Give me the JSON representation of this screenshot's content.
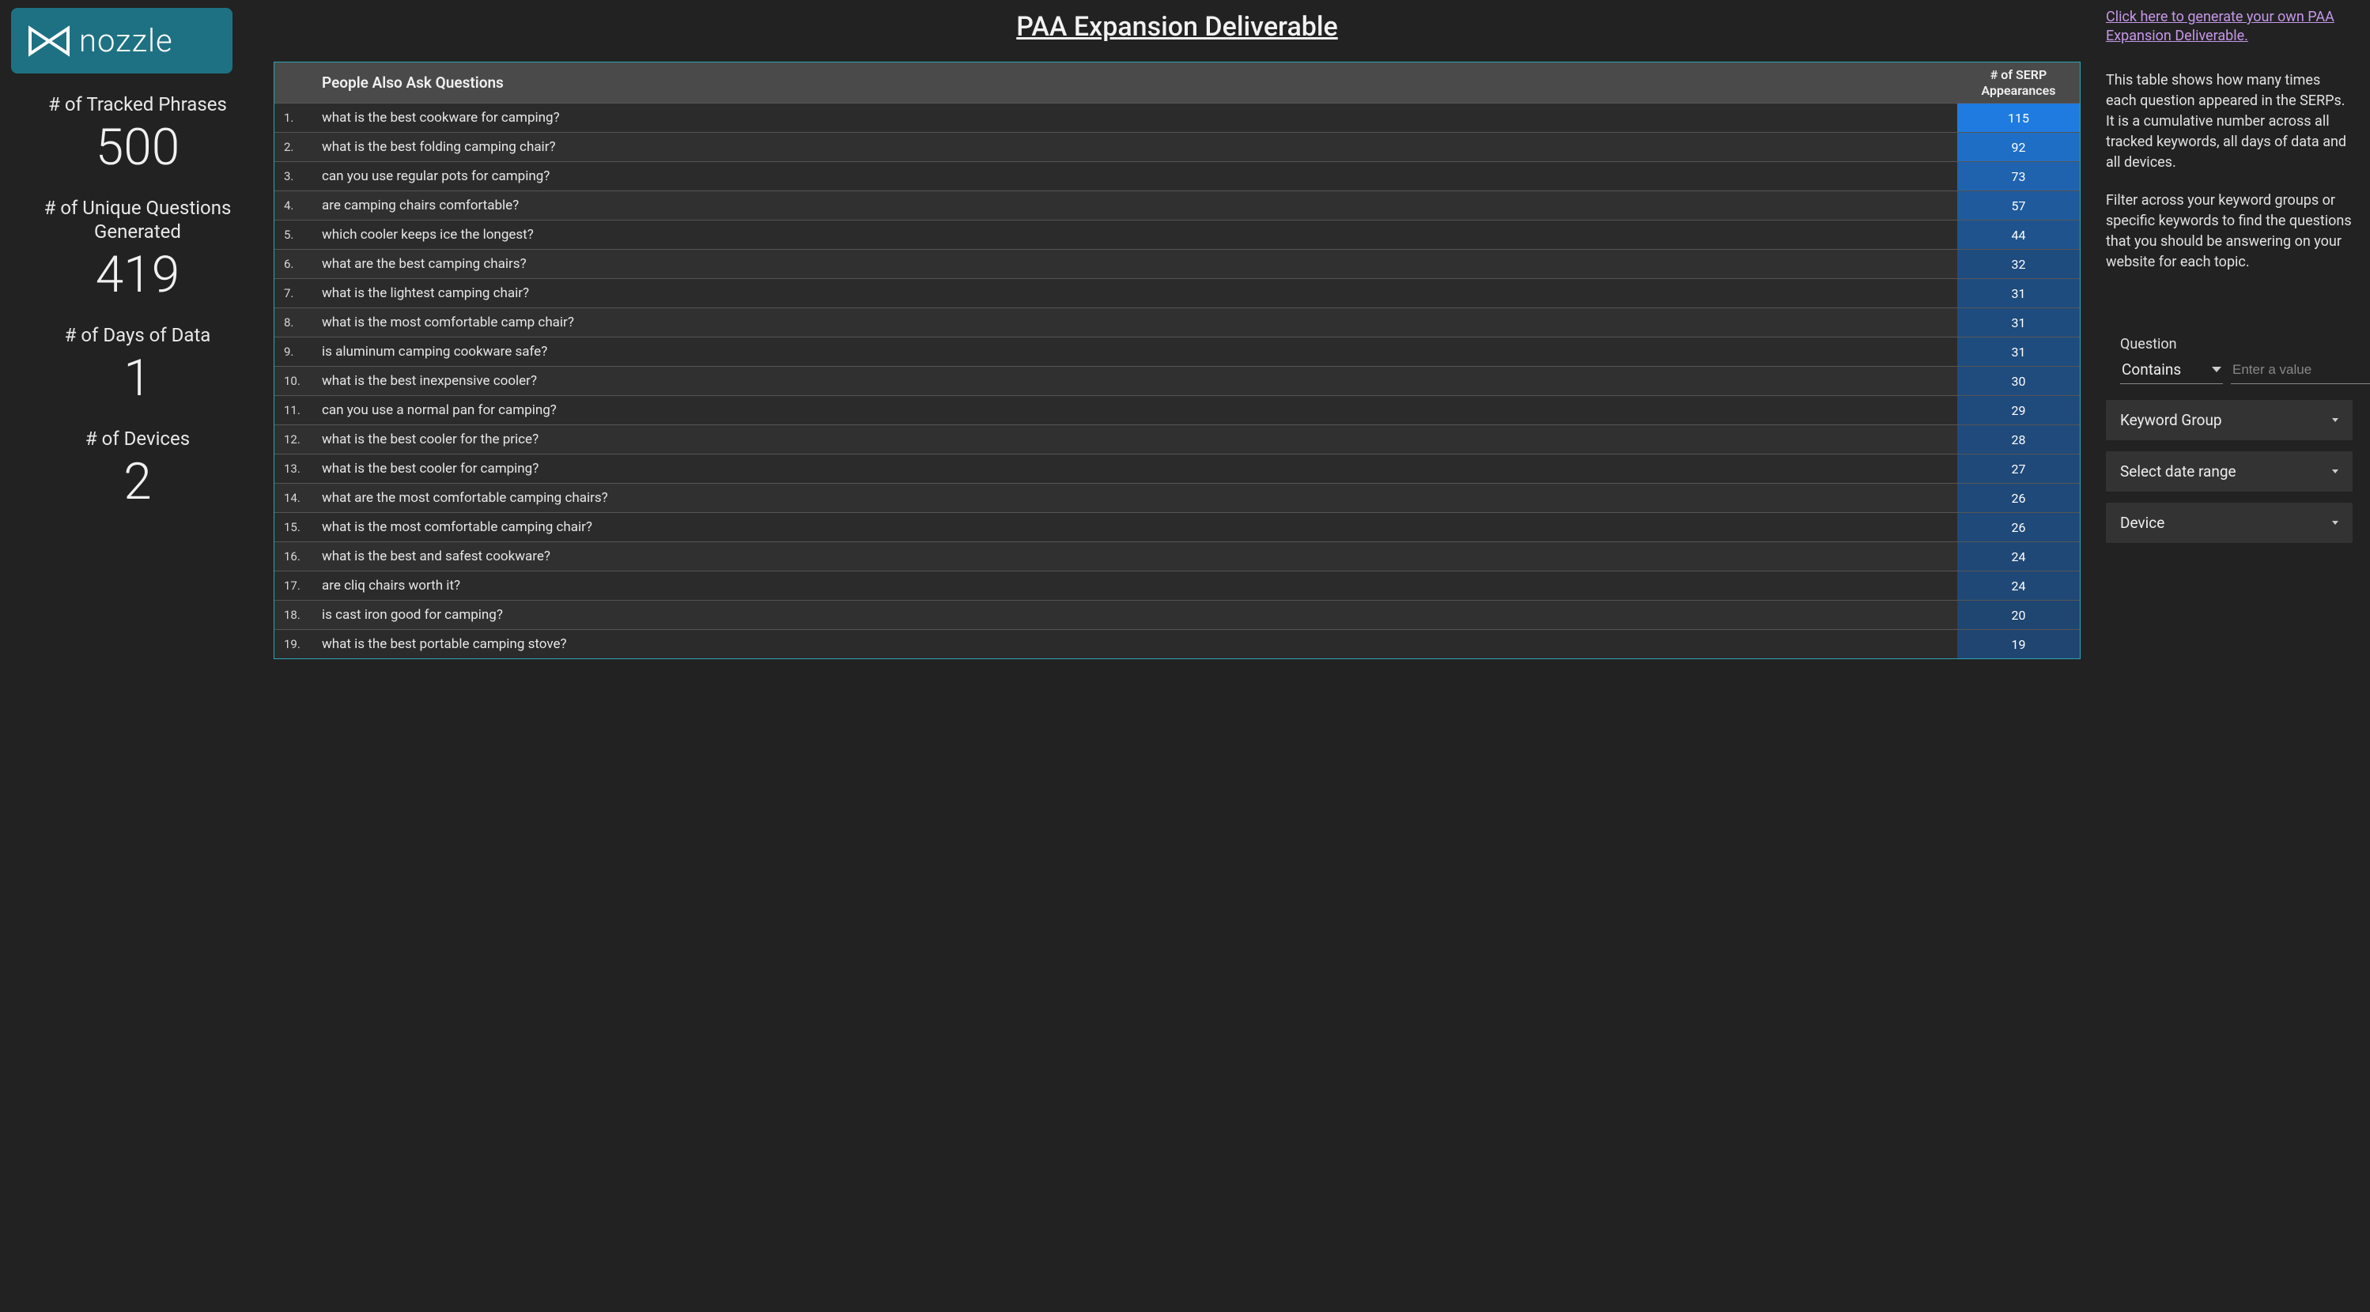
{
  "brand": {
    "name": "nozzle"
  },
  "page_title": "PAA Expansion Deliverable",
  "stats": [
    {
      "label": "# of Tracked Phrases",
      "value": "500"
    },
    {
      "label": "# of Unique Questions Generated",
      "value": "419"
    },
    {
      "label": "# of Days of Data",
      "value": "1"
    },
    {
      "label": "# of Devices",
      "value": "2"
    }
  ],
  "table": {
    "header_question": "People Also Ask Questions",
    "header_count": "# of SERP Appearances",
    "max_value": 115,
    "color_scale": {
      "min_color": "#1f3a5a",
      "max_color": "#1f7be0"
    },
    "rows": [
      {
        "idx": "1.",
        "q": "what is the best cookware for camping?",
        "n": 115
      },
      {
        "idx": "2.",
        "q": "what is the best folding camping chair?",
        "n": 92
      },
      {
        "idx": "3.",
        "q": "can you use regular pots for camping?",
        "n": 73
      },
      {
        "idx": "4.",
        "q": "are camping chairs comfortable?",
        "n": 57
      },
      {
        "idx": "5.",
        "q": "which cooler keeps ice the longest?",
        "n": 44
      },
      {
        "idx": "6.",
        "q": "what are the best camping chairs?",
        "n": 32
      },
      {
        "idx": "7.",
        "q": "what is the lightest camping chair?",
        "n": 31
      },
      {
        "idx": "8.",
        "q": "what is the most comfortable camp chair?",
        "n": 31
      },
      {
        "idx": "9.",
        "q": "is aluminum camping cookware safe?",
        "n": 31
      },
      {
        "idx": "10.",
        "q": "what is the best inexpensive cooler?",
        "n": 30
      },
      {
        "idx": "11.",
        "q": "can you use a normal pan for camping?",
        "n": 29
      },
      {
        "idx": "12.",
        "q": "what is the best cooler for the price?",
        "n": 28
      },
      {
        "idx": "13.",
        "q": "what is the best cooler for camping?",
        "n": 27
      },
      {
        "idx": "14.",
        "q": "what are the most comfortable camping chairs?",
        "n": 26
      },
      {
        "idx": "15.",
        "q": "what is the most comfortable camping chair?",
        "n": 26
      },
      {
        "idx": "16.",
        "q": "what is the best and safest cookware?",
        "n": 24
      },
      {
        "idx": "17.",
        "q": "are cliq chairs worth it?",
        "n": 24
      },
      {
        "idx": "18.",
        "q": "is cast iron good for camping?",
        "n": 20
      },
      {
        "idx": "19.",
        "q": "what is the best portable camping stove?",
        "n": 19
      }
    ]
  },
  "right": {
    "gen_link": "Click here to generate your own PAA Expansion Deliverable.",
    "desc1": "This table shows how many times each question appeared in the SERPs. It is a cumulative number across all tracked keywords, all days of data and all devices.",
    "desc2": "Filter across your keyword groups or specific keywords to find the questions that you should be answering on your website for each topic.",
    "filter_question_label": "Question",
    "filter_question_mode": "Contains",
    "filter_question_placeholder": "Enter a value",
    "filter_keyword_group": "Keyword Group",
    "filter_date_range": "Select date range",
    "filter_device": "Device"
  }
}
